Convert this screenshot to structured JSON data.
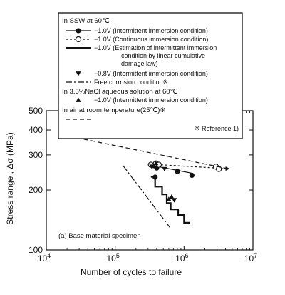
{
  "chart_data": {
    "type": "scatter",
    "title": "",
    "xlabel": "Number of cycles to failure",
    "ylabel": "Stress range , Δσ (MPa)",
    "xscale": "log",
    "yscale": "log",
    "xlim": [
      10000,
      10000000
    ],
    "ylim": [
      100,
      500
    ],
    "x_ticks": [
      {
        "value": 10000,
        "base": "10",
        "exp": "4"
      },
      {
        "value": 100000,
        "base": "10",
        "exp": "5"
      },
      {
        "value": 1000000,
        "base": "10",
        "exp": "6"
      },
      {
        "value": 10000000,
        "base": "10",
        "exp": "7"
      }
    ],
    "y_ticks": [
      {
        "value": 100,
        "label": "100"
      },
      {
        "value": 200,
        "label": "200"
      },
      {
        "value": 300,
        "label": "300"
      },
      {
        "value": 400,
        "label": "400"
      },
      {
        "value": 500,
        "label": "500"
      }
    ],
    "panel_label": "(a) Base material specimen",
    "grid": false,
    "legend_position": "top",
    "legend": {
      "headers": [
        {
          "id": "h1",
          "text": "In SSW at 60℃"
        },
        {
          "id": "h2",
          "text": "In 3.5%NaCl aqueous solution at 60℃"
        },
        {
          "id": "h3",
          "text": "In air at room temperature(25℃)※"
        }
      ],
      "entries": [
        {
          "id": "e1",
          "lines": [
            "−1.0V (Intermittent immersion condition)"
          ]
        },
        {
          "id": "e2",
          "lines": [
            "−1.0V (Continuous immersion condition)"
          ]
        },
        {
          "id": "e3",
          "lines": [
            "−1.0V (Estimation of intermittent immersion",
            "condition by linear cumulative",
            "damage law)"
          ]
        },
        {
          "id": "e4",
          "lines": [
            "−0.8V (Intermittent immersion condition)"
          ]
        },
        {
          "id": "e5",
          "lines": [
            "Free corrosion condition※"
          ]
        },
        {
          "id": "e6",
          "lines": [
            "−1.0V (Intermittent immersion condition)"
          ]
        },
        {
          "id": "e7",
          "lines": [
            ""
          ]
        }
      ],
      "note": "※ Reference 1)"
    },
    "series": [
      {
        "id": "ssw_-1.0V_intermittent",
        "name": "−1.0V (Intermittent immersion condition)",
        "marker": "filled-circle",
        "points": [
          [
            360000,
            265
          ],
          [
            400000,
            258
          ],
          [
            800000,
            248
          ],
          [
            1300000,
            237
          ],
          [
            380000,
            232
          ]
        ],
        "fit": [
          [
            300000,
            268
          ],
          [
            1300000,
            243
          ]
        ]
      },
      {
        "id": "ssw_-1.0V_continuous",
        "name": "−1.0V (Continuous immersion condition)",
        "marker": "open-circle",
        "points": [
          [
            330000,
            268
          ],
          [
            390000,
            272
          ],
          [
            430000,
            268
          ],
          [
            2900000,
            262
          ],
          [
            3200000,
            255
          ]
        ],
        "fit": [
          [
            300000,
            270
          ],
          [
            4300000,
            256
          ]
        ],
        "runout": [
          4000000,
          256
        ]
      },
      {
        "id": "ssw_-1.0V_estimation",
        "name": "−1.0V (Estimation of intermittent immersion condition by linear cumulative damage law)",
        "line": "solid-step",
        "points": [
          [
            330000,
            233
          ],
          [
            380000,
            233
          ],
          [
            380000,
            208
          ],
          [
            480000,
            208
          ],
          [
            480000,
            190
          ],
          [
            560000,
            190
          ],
          [
            560000,
            172
          ],
          [
            640000,
            172
          ],
          [
            640000,
            160
          ],
          [
            820000,
            160
          ],
          [
            820000,
            150
          ],
          [
            1000000,
            150
          ],
          [
            1000000,
            137
          ],
          [
            1200000,
            137
          ]
        ]
      },
      {
        "id": "ssw_-0.8V_intermittent",
        "name": "−0.8V (Intermittent immersion condition)",
        "marker": "filled-triangle-down",
        "points": [
          [
            340000,
            262
          ],
          [
            520000,
            255
          ],
          [
            720000,
            178
          ]
        ]
      },
      {
        "id": "ssw_free_corrosion",
        "name": "Free corrosion condition",
        "line": "dash-dot",
        "points": [
          [
            130000,
            265
          ],
          [
            620000,
            130
          ]
        ]
      },
      {
        "id": "nacl_-1.0V_intermittent",
        "name": "−1.0V (Intermittent immersion condition)",
        "marker": "filled-triangle-up",
        "points": [
          [
            390000,
            273
          ],
          [
            600000,
            180
          ],
          [
            660000,
            185
          ]
        ]
      },
      {
        "id": "air_room_temperature",
        "name": "In air at room temperature(25℃)",
        "line": "dashed",
        "points": [
          [
            35000,
            360
          ],
          [
            4300000,
            256
          ]
        ]
      }
    ]
  }
}
